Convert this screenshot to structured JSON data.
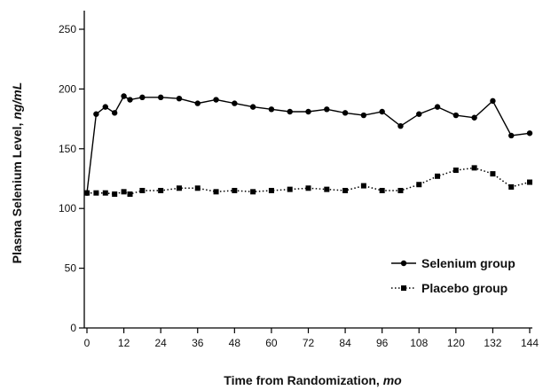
{
  "chart_data": {
    "type": "line",
    "xlabel_main": "Time from Randomization, ",
    "xlabel_unit": "mo",
    "ylabel_main": "Plasma Selenium Level, ",
    "ylabel_unit": "ng/mL",
    "xlim": [
      0,
      144
    ],
    "ylim": [
      0,
      250
    ],
    "xticks": [
      0,
      12,
      24,
      36,
      48,
      60,
      72,
      84,
      96,
      108,
      120,
      132,
      144
    ],
    "yticks": [
      0,
      50,
      100,
      150,
      200,
      250
    ],
    "grid": false,
    "legend_position": "bottom-right",
    "series": [
      {
        "name": "Selenium group",
        "marker": "circle",
        "line_style": "solid",
        "color": "#000000",
        "x": [
          0,
          3,
          6,
          9,
          12,
          14,
          18,
          24,
          30,
          36,
          42,
          48,
          54,
          60,
          66,
          72,
          78,
          84,
          90,
          96,
          102,
          108,
          114,
          120,
          126,
          132,
          138,
          144
        ],
        "y": [
          113,
          179,
          185,
          180,
          194,
          191,
          193,
          193,
          192,
          188,
          191,
          188,
          185,
          183,
          181,
          181,
          183,
          180,
          178,
          181,
          169,
          179,
          185,
          178,
          176,
          190,
          161,
          163
        ]
      },
      {
        "name": "Placebo group",
        "marker": "square",
        "line_style": "dotted",
        "color": "#000000",
        "x": [
          0,
          3,
          6,
          9,
          12,
          14,
          18,
          24,
          30,
          36,
          42,
          48,
          54,
          60,
          66,
          72,
          78,
          84,
          90,
          96,
          102,
          108,
          114,
          120,
          126,
          132,
          138,
          144
        ],
        "y": [
          113,
          113,
          113,
          112,
          114,
          112,
          115,
          115,
          117,
          117,
          114,
          115,
          114,
          115,
          116,
          117,
          116,
          115,
          119,
          115,
          115,
          120,
          127,
          132,
          134,
          129,
          118,
          122
        ]
      }
    ]
  }
}
